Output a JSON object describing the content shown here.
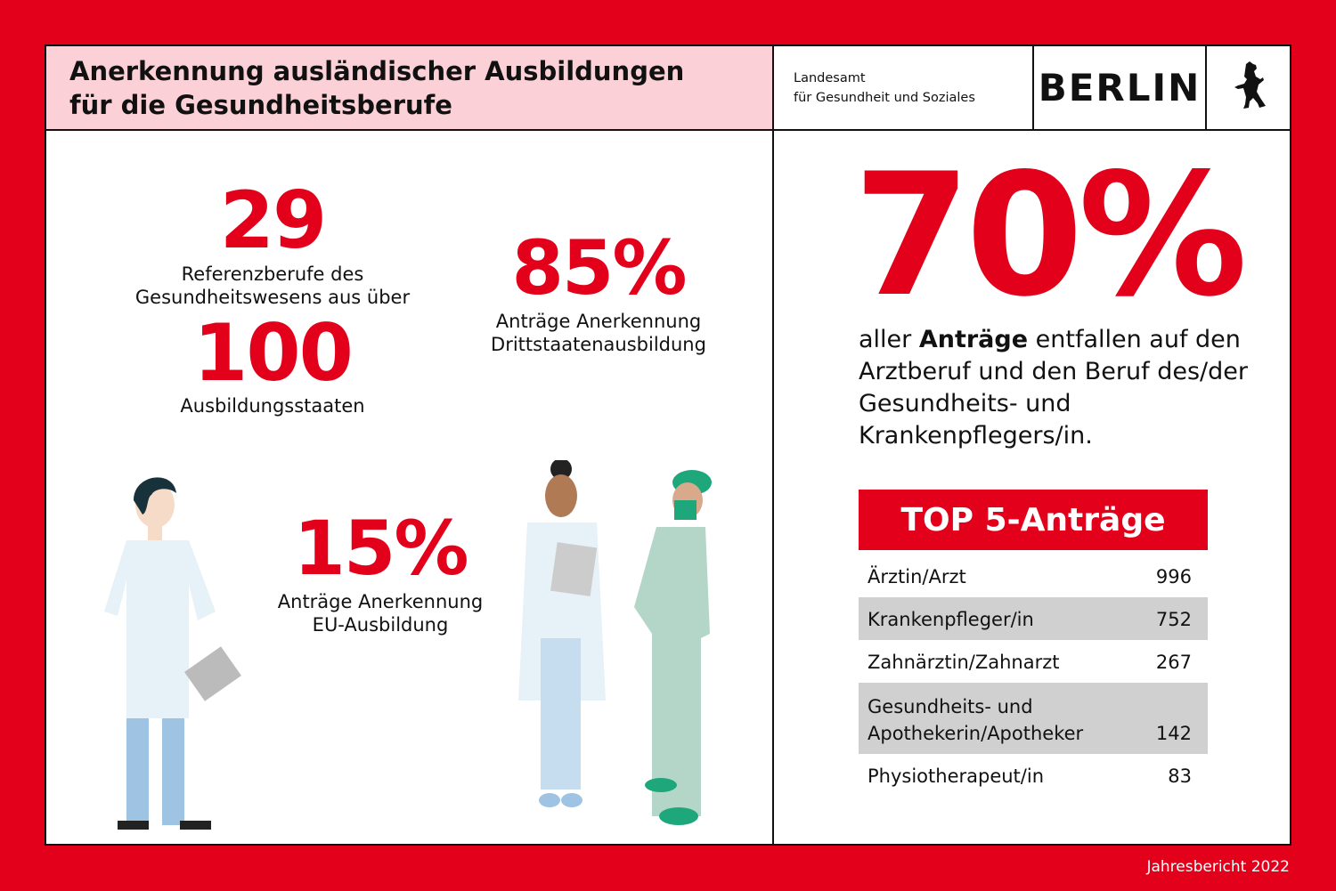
{
  "header": {
    "title_line1": "Anerkennung ausländischer Ausbildungen",
    "title_line2": "für die Gesundheitsberufe",
    "agency_line1": "Landesamt",
    "agency_line2": "für Gesundheit und Soziales",
    "berlin": "BERLIN",
    "logo_icon": "berlin-bear-icon"
  },
  "stats": {
    "ref_value": "29",
    "ref_label_line1": "Referenzberufe des",
    "ref_label_line2": "Gesundheitswesens aus über",
    "countries_value": "100",
    "countries_label": "Ausbildungsstaaten",
    "third_value": "85%",
    "third_label_line1": "Anträge Anerkennung",
    "third_label_line2": "Drittstaatenausbildung",
    "eu_value": "15%",
    "eu_label_line1": "Anträge Anerkennung",
    "eu_label_line2": "EU-Ausbildung"
  },
  "highlight": {
    "value": "70%",
    "text_pre": "aller ",
    "text_bold": "Anträge",
    "text_post": " entfallen auf den Arztberuf und den Beruf des/der Gesundheits- und Krankenpflegers/in."
  },
  "top5": {
    "title": "TOP 5-Anträge",
    "rows": [
      {
        "label": "Ärztin/Arzt",
        "value": "996"
      },
      {
        "label": "Krankenpfleger/in",
        "value": "752"
      },
      {
        "label": "Zahnärztin/Zahnarzt",
        "value": "267"
      },
      {
        "label": "Gesundheits- und",
        "label2": "Apothekerin/Apotheker",
        "value": "142"
      },
      {
        "label": "Physiotherapeut/in",
        "value": "83"
      }
    ]
  },
  "footer": "Jahresbericht 2022",
  "colors": {
    "brand_red": "#e3001b",
    "header_pink": "#fbd0d6",
    "row_gray": "#d0d0d0"
  }
}
